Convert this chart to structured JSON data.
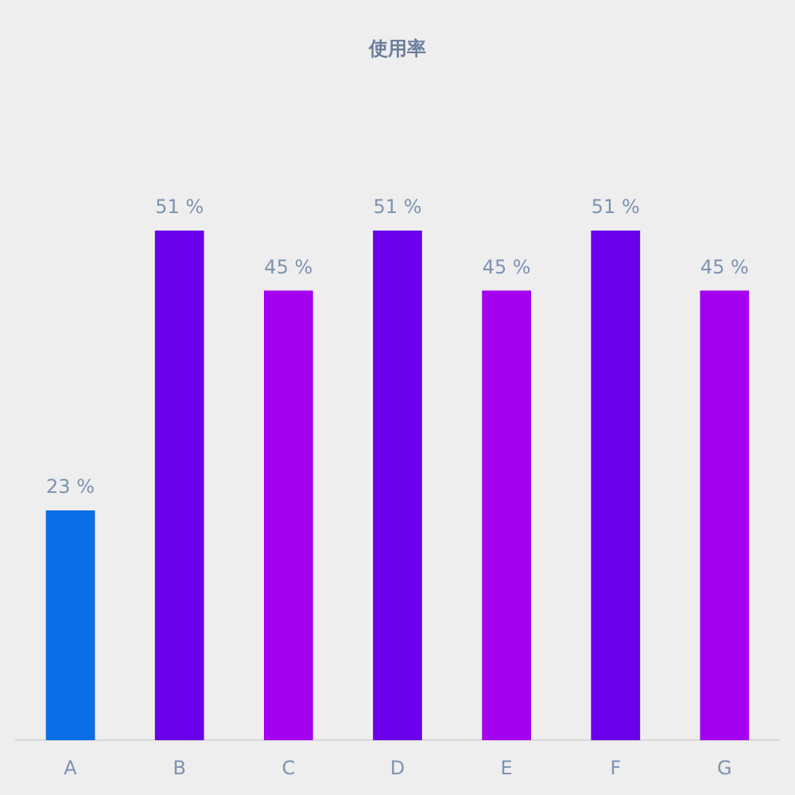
{
  "chart_data": {
    "type": "bar",
    "title": "使用率",
    "categories": [
      "A",
      "B",
      "C",
      "D",
      "E",
      "F",
      "G"
    ],
    "values": [
      23,
      51,
      45,
      51,
      45,
      51,
      45
    ],
    "colors": [
      "#0a6ee6",
      "#6a00ea",
      "#a400f0",
      "#6a00ea",
      "#a400f0",
      "#6a00ea",
      "#a400f0"
    ],
    "value_labels": [
      "23 %",
      "51 %",
      "45 %",
      "51 %",
      "45 %",
      "51 %",
      "45 %"
    ],
    "grid": false,
    "legend": false
  }
}
